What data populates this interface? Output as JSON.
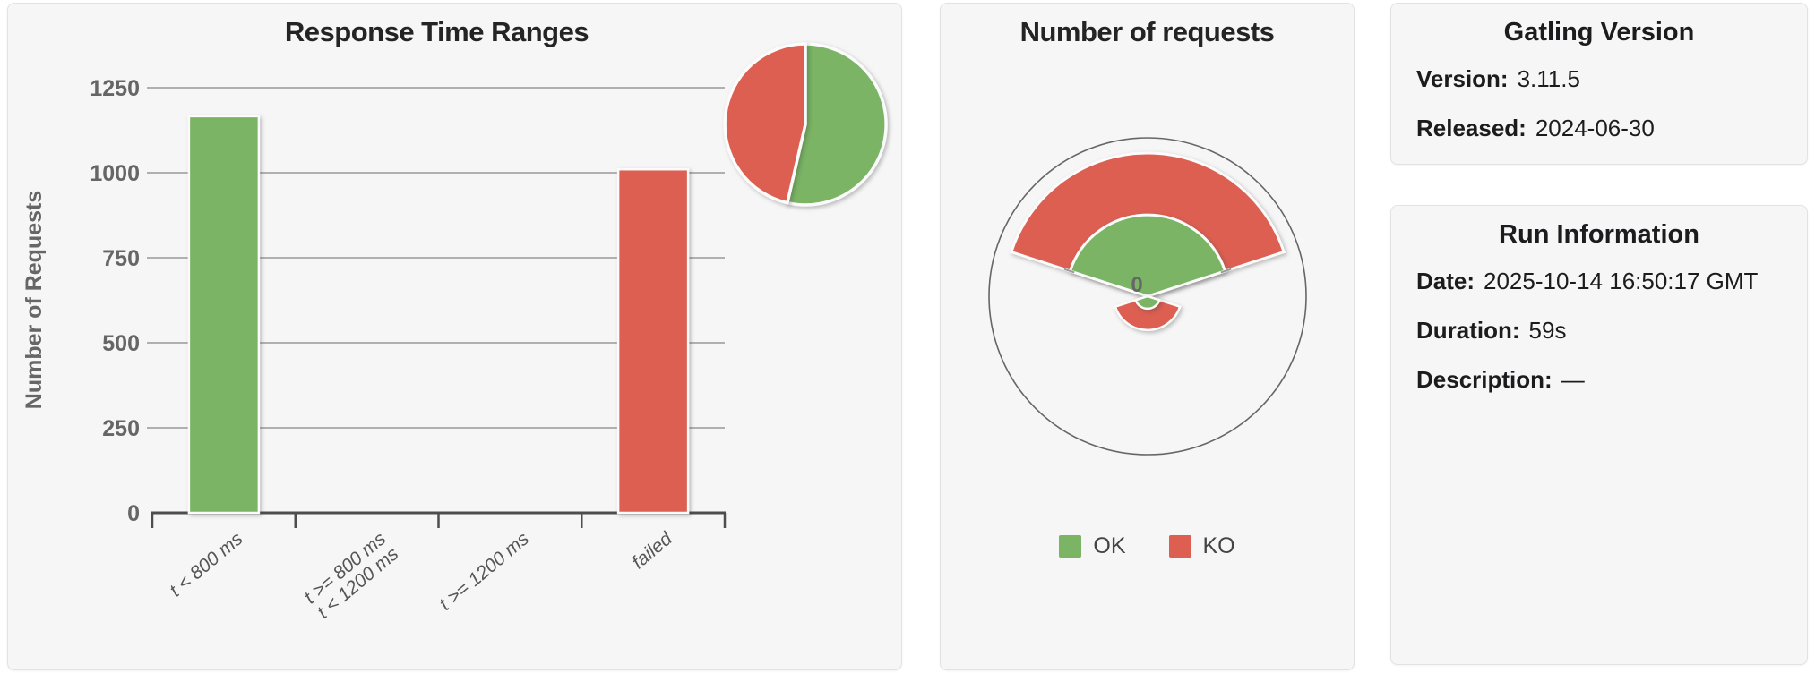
{
  "colors": {
    "ok": "#7ab464",
    "ko": "#dc5f52",
    "panel_bg": "#f6f6f6",
    "grid": "#999999",
    "axis": "#4d4d4d",
    "tick_label": "#666666",
    "gauge_ring": "#666666",
    "shape_stroke": "#fbfbfb"
  },
  "left_panel": {
    "title": "Response Time Ranges"
  },
  "middle_panel": {
    "title": "Number of requests",
    "center_label": "0",
    "legend": [
      {
        "label": "OK",
        "color_key": "ok"
      },
      {
        "label": "KO",
        "color_key": "ko"
      }
    ]
  },
  "gatling_version": {
    "title": "Gatling Version",
    "rows": [
      {
        "label": "Version:",
        "value": "3.11.5"
      },
      {
        "label": "Released:",
        "value": "2024-06-30"
      }
    ]
  },
  "run_information": {
    "title": "Run Information",
    "rows": [
      {
        "label": "Date:",
        "value": "2025-10-14 16:50:17 GMT"
      },
      {
        "label": "Duration:",
        "value": "59s"
      },
      {
        "label": "Description:",
        "value": "—"
      }
    ]
  },
  "chart_data": [
    {
      "id": "response-time-ranges-bar",
      "type": "bar",
      "title": "Response Time Ranges",
      "xlabel": "",
      "ylabel": "Number of Requests",
      "categories": [
        "t < 800 ms",
        "t >= 800 ms\nt < 1200 ms",
        "t >= 1200 ms",
        "failed"
      ],
      "values": [
        1166,
        0,
        0,
        1010
      ],
      "bar_color_keys": [
        "ok",
        "ok",
        "ok",
        "ko"
      ],
      "ylim": [
        0,
        1250
      ],
      "yticks": [
        0,
        250,
        500,
        750,
        1000,
        1250
      ],
      "grid": true,
      "legend_position": "none"
    },
    {
      "id": "response-time-ranges-pie",
      "type": "pie",
      "slices": [
        {
          "name": "OK",
          "value": 1166,
          "color_key": "ok"
        },
        {
          "name": "KO",
          "value": 1010,
          "color_key": "ko"
        }
      ],
      "start": "top",
      "direction": "clockwise"
    },
    {
      "id": "number-of-requests-gauge",
      "type": "pie",
      "variant": "polar-fan-gauge",
      "title": "Number of requests",
      "axis_label": "0",
      "fan_angles_deg": [
        18,
        162
      ],
      "series": [
        {
          "name": "KO",
          "value": 1010,
          "color_key": "ko"
        },
        {
          "name": "OK",
          "value": 1166,
          "color_key": "ok"
        }
      ],
      "legend": [
        "OK",
        "KO"
      ],
      "legend_position": "bottom"
    }
  ]
}
